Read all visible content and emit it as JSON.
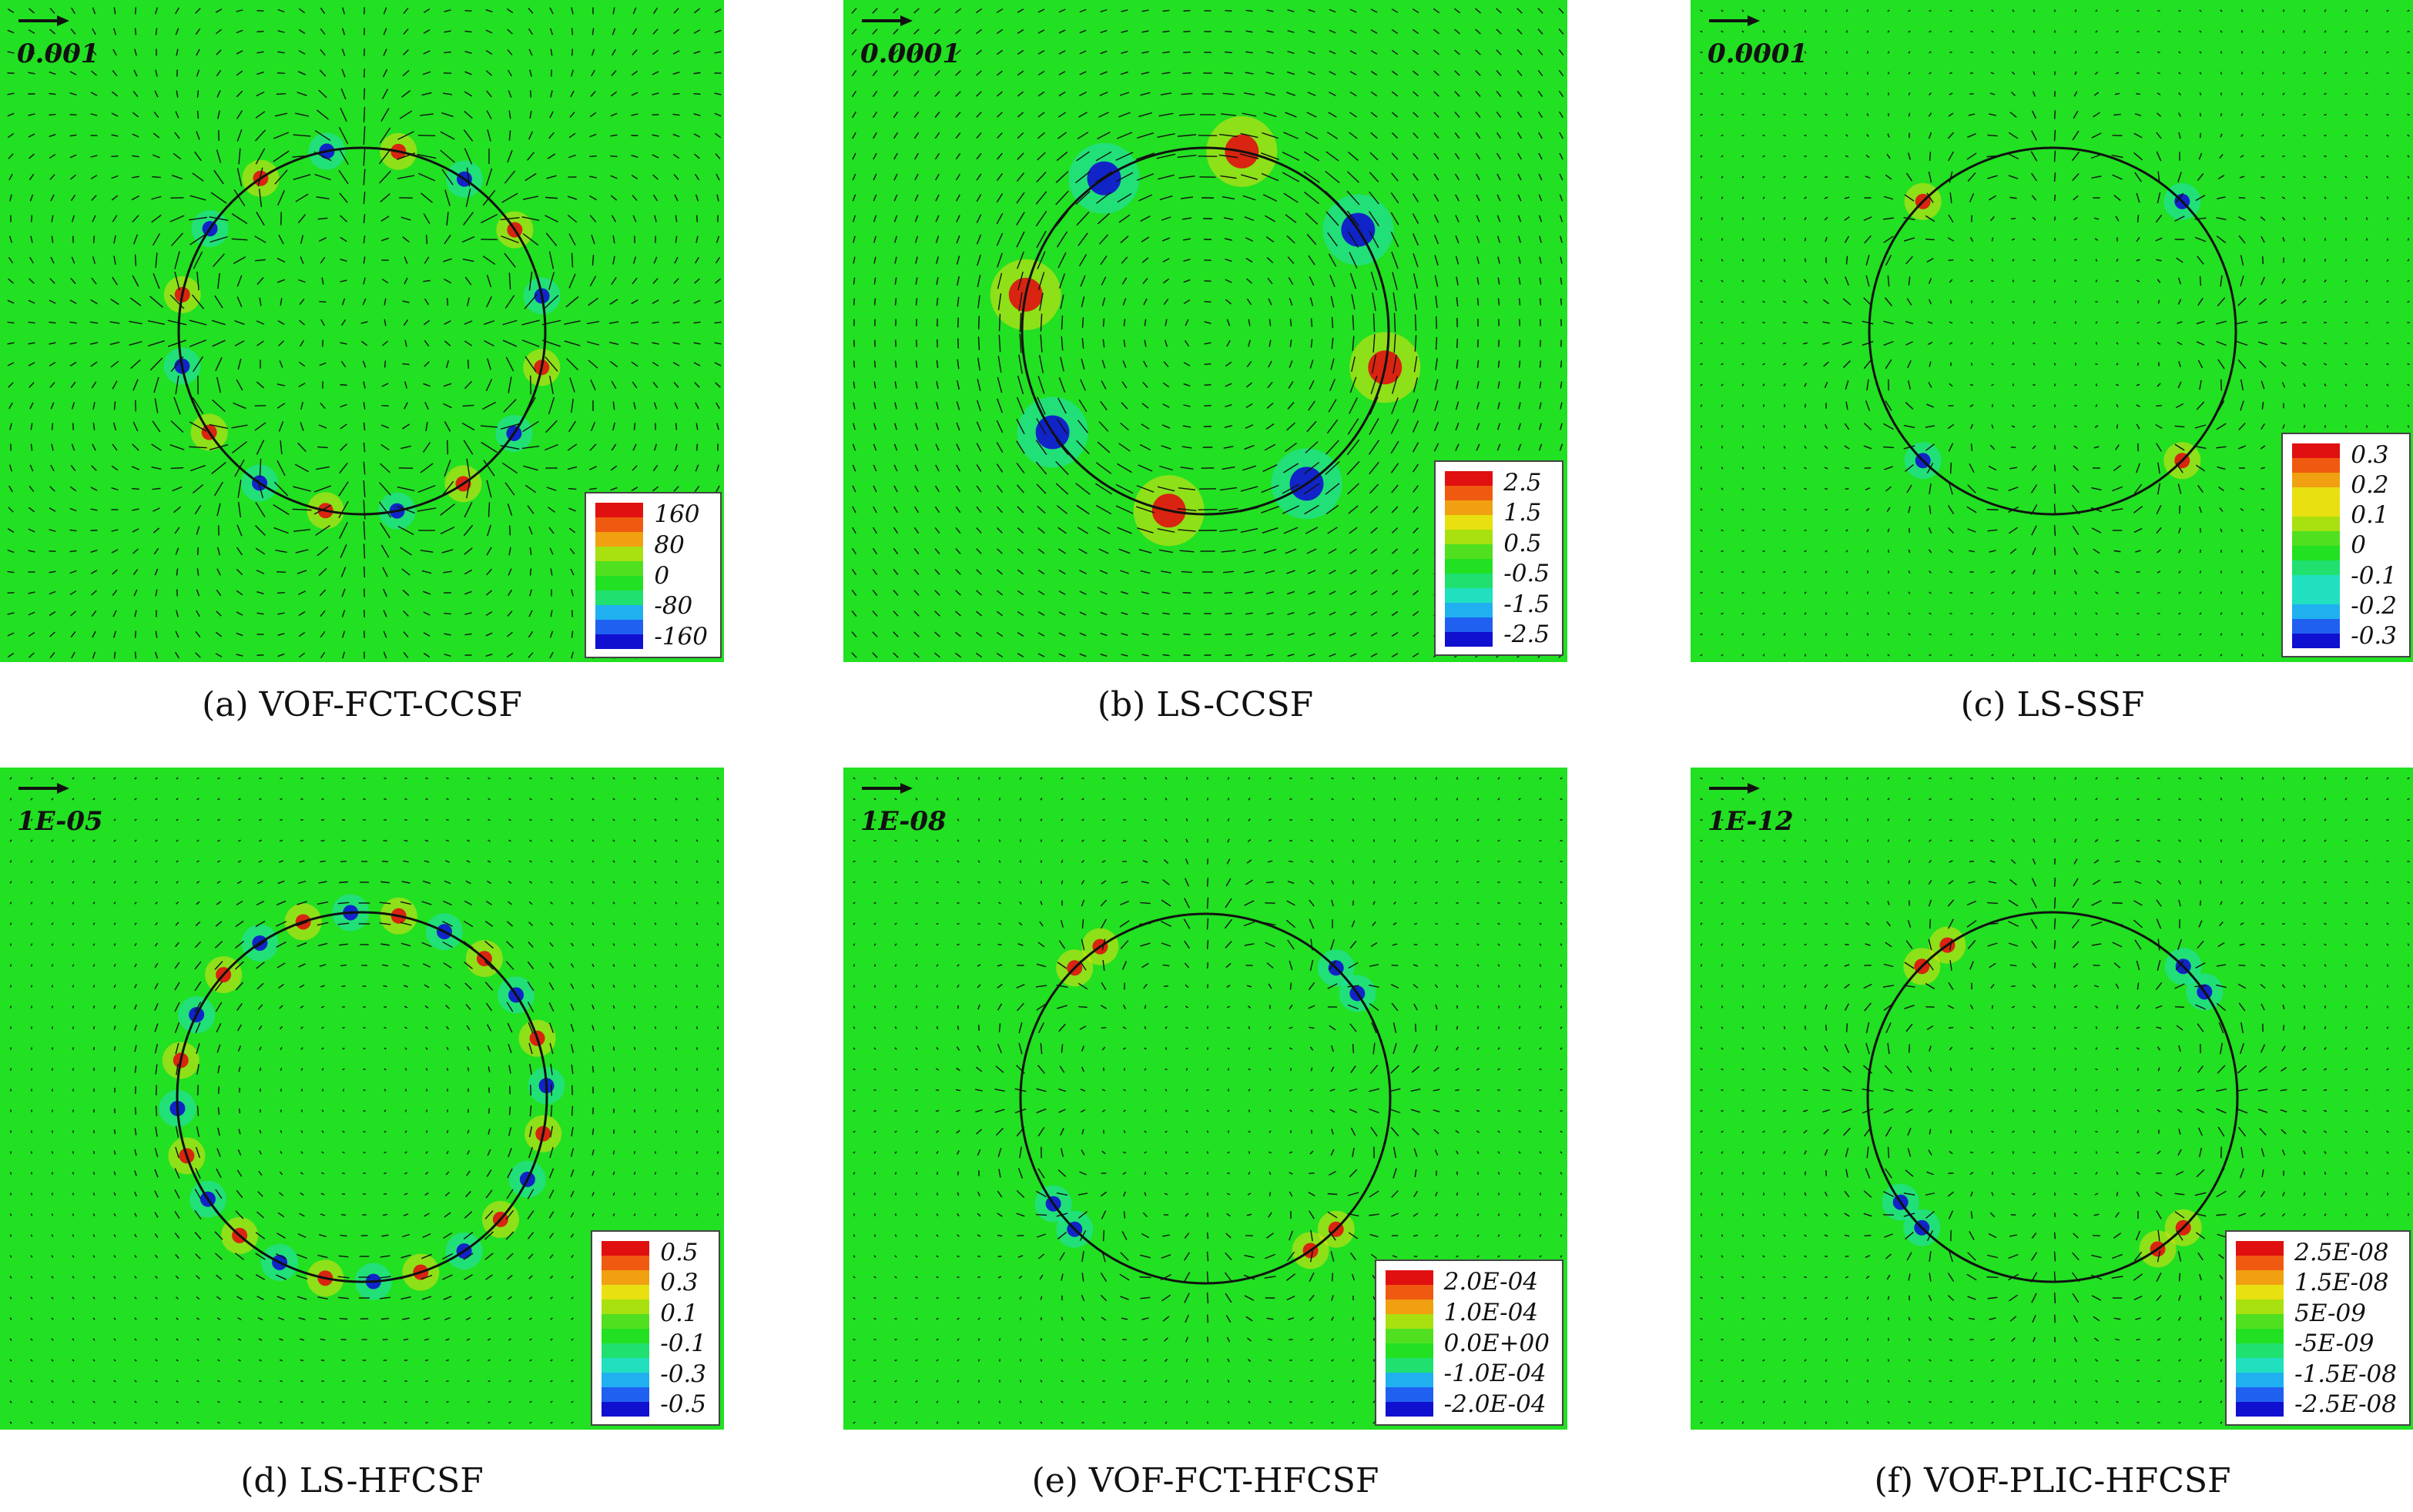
{
  "panels": [
    {
      "caption": "(a) VOF-FCT-CCSF",
      "ref_label": "0.001",
      "legend": [
        "160",
        "80",
        "0",
        "-80",
        "-160"
      ],
      "pattern": "spikes8"
    },
    {
      "caption": "(b) LS-CCSF",
      "ref_label": "0.0001",
      "legend": [
        "2.5",
        "1.5",
        "0.5",
        "-0.5",
        "-1.5",
        "-2.5"
      ],
      "pattern": "vortex"
    },
    {
      "caption": "(c) LS-SSF",
      "ref_label": "0.0001",
      "legend": [
        "0.3",
        "0.2",
        "0.1",
        "0",
        "-0.1",
        "-0.2",
        "-0.3"
      ],
      "pattern": "quad"
    },
    {
      "caption": "(d) LS-HFCSF",
      "ref_label": "1E-05",
      "legend": [
        "0.5",
        "0.3",
        "0.1",
        "-0.1",
        "-0.3",
        "-0.5"
      ],
      "pattern": "ring"
    },
    {
      "caption": "(e) VOF-FCT-HFCSF",
      "ref_label": "1E-08",
      "legend": [
        "2.0E-04",
        "1.0E-04",
        "0.0E+00",
        "-1.0E-04",
        "-2.0E-04"
      ],
      "pattern": "diag"
    },
    {
      "caption": "(f) VOF-PLIC-HFCSF",
      "ref_label": "1E-12",
      "legend": [
        "2.5E-08",
        "1.5E-08",
        "5E-09",
        "-5E-09",
        "-1.5E-08",
        "-2.5E-08"
      ],
      "pattern": "diag"
    }
  ],
  "colors": {
    "field": "#22e022",
    "scale": [
      "#e01010",
      "#f05a10",
      "#f0a010",
      "#e8e010",
      "#a8e010",
      "#50e020",
      "#22e022",
      "#20e070",
      "#20e0c0",
      "#20b0f0",
      "#2060f0",
      "#1010d0"
    ]
  }
}
